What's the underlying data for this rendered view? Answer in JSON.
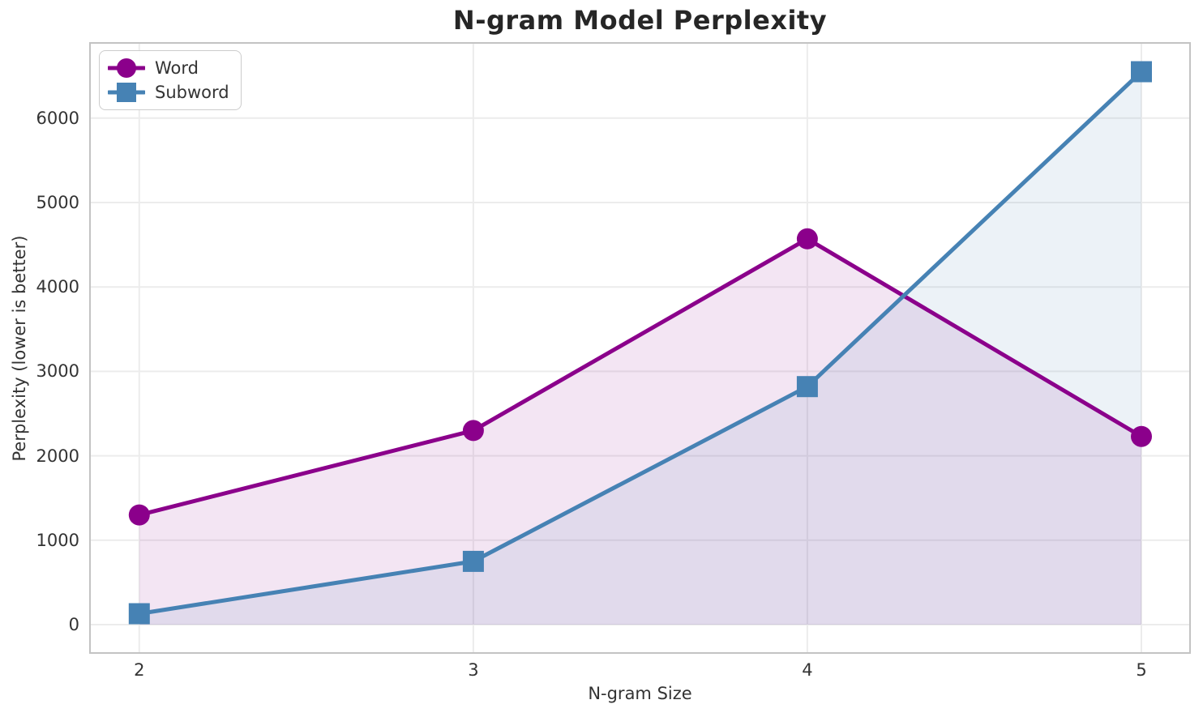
{
  "chart_data": {
    "type": "line",
    "title": "N-gram Model Perplexity",
    "xlabel": "N-gram Size",
    "ylabel": "Perplexity (lower is better)",
    "x": [
      2,
      3,
      4,
      5
    ],
    "xticks": [
      2,
      3,
      4,
      5
    ],
    "yticks": [
      0,
      1000,
      2000,
      3000,
      4000,
      5000,
      6000
    ],
    "xlim": [
      1.85,
      5.148
    ],
    "ylim": [
      -345,
      6900
    ],
    "grid": true,
    "legend_position": "upper left",
    "series": [
      {
        "name": "Word",
        "marker": "circle",
        "color": "#8B008B",
        "fill_alpha": 0.1,
        "values": [
          1300,
          2300,
          4570,
          2230
        ]
      },
      {
        "name": "Subword",
        "marker": "square",
        "color": "#4682B4",
        "fill_alpha": 0.1,
        "values": [
          130,
          750,
          2820,
          6550
        ]
      }
    ]
  }
}
